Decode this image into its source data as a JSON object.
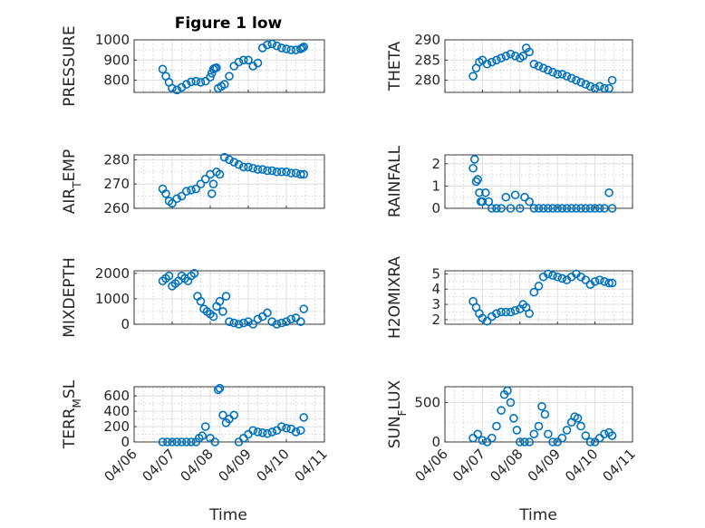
{
  "figure": {
    "title": "Figure 1 low",
    "xlabel": "Time"
  },
  "colors": {
    "marker": "#0072BD",
    "axis": "#262626"
  },
  "chart_data": [
    {
      "type": "scatter",
      "ylabel": "PRESSURE",
      "ylim": [
        740,
        1000
      ],
      "yticks": [
        800,
        900,
        1000
      ],
      "x": [
        "04/06 18:00",
        "04/06 20:00",
        "04/06 22:00",
        "04/07 00:00",
        "04/07 03:00",
        "04/07 06:00",
        "04/07 09:00",
        "04/07 12:00",
        "04/07 15:00",
        "04/07 18:00",
        "04/07 21:00",
        "04/08 00:00",
        "04/08 01:00",
        "04/08 02:00",
        "04/08 03:00",
        "04/08 04:00",
        "04/08 05:00",
        "04/08 07:00",
        "04/08 09:00",
        "04/08 12:00",
        "04/08 15:00",
        "04/08 18:00",
        "04/08 21:00",
        "04/09 00:00",
        "04/09 03:00",
        "04/09 06:00",
        "04/09 09:00",
        "04/09 12:00",
        "04/09 15:00",
        "04/09 18:00",
        "04/09 21:00",
        "04/10 00:00",
        "04/10 03:00",
        "04/10 06:00",
        "04/10 09:00",
        "04/10 10:00",
        "04/10 11:00"
      ],
      "y": [
        855,
        820,
        790,
        760,
        752,
        765,
        780,
        792,
        795,
        790,
        795,
        815,
        835,
        855,
        860,
        862,
        760,
        770,
        780,
        820,
        870,
        890,
        900,
        900,
        870,
        885,
        960,
        975,
        980,
        970,
        960,
        955,
        950,
        950,
        955,
        960,
        965
      ]
    },
    {
      "type": "scatter",
      "ylabel": "THETA",
      "ylim": [
        277,
        290
      ],
      "yticks": [
        280,
        285,
        290
      ],
      "x": [
        "04/06 18:00",
        "04/06 20:00",
        "04/06 22:00",
        "04/07 00:00",
        "04/07 03:00",
        "04/07 06:00",
        "04/07 09:00",
        "04/07 12:00",
        "04/07 15:00",
        "04/07 18:00",
        "04/07 21:00",
        "04/08 00:00",
        "04/08 02:00",
        "04/08 04:00",
        "04/08 06:00",
        "04/08 09:00",
        "04/08 12:00",
        "04/08 15:00",
        "04/08 18:00",
        "04/08 21:00",
        "04/09 00:00",
        "04/09 03:00",
        "04/09 06:00",
        "04/09 09:00",
        "04/09 12:00",
        "04/09 15:00",
        "04/09 18:00",
        "04/09 21:00",
        "04/10 00:00",
        "04/10 03:00",
        "04/10 06:00",
        "04/10 09:00",
        "04/10 11:00"
      ],
      "y": [
        281,
        283,
        284.5,
        285,
        284,
        284.5,
        285,
        285.5,
        286,
        286.5,
        286,
        285.5,
        286,
        288,
        287,
        284,
        283.5,
        283,
        282.5,
        282,
        281.5,
        281.5,
        281,
        280.5,
        280,
        279.5,
        279,
        278.5,
        278,
        278.5,
        278,
        278,
        280
      ]
    },
    {
      "type": "scatter",
      "ylabel": "AIR_TEMP",
      "ylim": [
        260,
        282
      ],
      "yticks": [
        260,
        270,
        280
      ],
      "x": [
        "04/06 18:00",
        "04/06 20:00",
        "04/06 22:00",
        "04/07 00:00",
        "04/07 03:00",
        "04/07 06:00",
        "04/07 09:00",
        "04/07 12:00",
        "04/07 15:00",
        "04/07 18:00",
        "04/07 21:00",
        "04/08 00:00",
        "04/08 01:00",
        "04/08 02:00",
        "04/08 04:00",
        "04/08 06:00",
        "04/08 09:00",
        "04/08 12:00",
        "04/08 15:00",
        "04/08 18:00",
        "04/08 21:00",
        "04/09 00:00",
        "04/09 03:00",
        "04/09 06:00",
        "04/09 09:00",
        "04/09 12:00",
        "04/09 15:00",
        "04/09 18:00",
        "04/09 21:00",
        "04/10 00:00",
        "04/10 03:00",
        "04/10 06:00",
        "04/10 09:00",
        "04/10 11:00"
      ],
      "y": [
        268,
        266,
        263,
        262,
        264,
        265,
        267,
        267.5,
        268,
        270,
        272,
        274,
        266,
        270,
        275,
        274,
        281,
        280,
        279,
        278,
        277,
        277,
        276.5,
        276,
        276,
        275.5,
        275.5,
        275,
        275,
        275,
        274.5,
        274.5,
        274,
        274
      ]
    },
    {
      "type": "scatter",
      "ylabel": "RAINFALL",
      "ylim": [
        0,
        2.4
      ],
      "yticks": [
        0,
        1,
        2
      ],
      "x": [
        "04/06 18:00",
        "04/06 19:00",
        "04/06 20:00",
        "04/06 21:00",
        "04/06 22:00",
        "04/06 23:00",
        "04/07 00:00",
        "04/07 02:00",
        "04/07 04:00",
        "04/07 06:00",
        "04/07 09:00",
        "04/07 12:00",
        "04/07 15:00",
        "04/07 18:00",
        "04/07 21:00",
        "04/08 00:00",
        "04/08 03:00",
        "04/08 06:00",
        "04/08 09:00",
        "04/08 12:00",
        "04/08 15:00",
        "04/08 18:00",
        "04/08 21:00",
        "04/09 00:00",
        "04/09 03:00",
        "04/09 06:00",
        "04/09 09:00",
        "04/09 12:00",
        "04/09 15:00",
        "04/09 18:00",
        "04/09 21:00",
        "04/10 00:00",
        "04/10 03:00",
        "04/10 06:00",
        "04/10 09:00",
        "04/10 11:00"
      ],
      "y": [
        1.8,
        2.2,
        1.2,
        1.3,
        0.7,
        0.3,
        0.3,
        0.7,
        0.3,
        0,
        0,
        0,
        0.5,
        0,
        0.6,
        0,
        0.5,
        0.3,
        0,
        0,
        0,
        0,
        0,
        0,
        0,
        0,
        0,
        0,
        0,
        0,
        0,
        0,
        0,
        0,
        0.7,
        0
      ]
    },
    {
      "type": "scatter",
      "ylabel": "MIXDEPTH",
      "ylim": [
        0,
        2100
      ],
      "yticks": [
        0,
        1000,
        2000
      ],
      "x": [
        "04/06 18:00",
        "04/06 20:00",
        "04/06 22:00",
        "04/07 00:00",
        "04/07 02:00",
        "04/07 04:00",
        "04/07 06:00",
        "04/07 08:00",
        "04/07 10:00",
        "04/07 12:00",
        "04/07 14:00",
        "04/07 16:00",
        "04/07 18:00",
        "04/07 20:00",
        "04/07 22:00",
        "04/08 00:00",
        "04/08 02:00",
        "04/08 04:00",
        "04/08 06:00",
        "04/08 08:00",
        "04/08 10:00",
        "04/08 12:00",
        "04/08 15:00",
        "04/08 18:00",
        "04/08 21:00",
        "04/09 00:00",
        "04/09 03:00",
        "04/09 06:00",
        "04/09 09:00",
        "04/09 12:00",
        "04/09 15:00",
        "04/09 18:00",
        "04/09 21:00",
        "04/10 00:00",
        "04/10 03:00",
        "04/10 06:00",
        "04/10 09:00",
        "04/10 11:00"
      ],
      "y": [
        1700,
        1800,
        1900,
        1500,
        1600,
        1700,
        1900,
        1800,
        1700,
        1900,
        2000,
        1100,
        900,
        600,
        500,
        400,
        300,
        700,
        900,
        500,
        1100,
        100,
        50,
        0,
        50,
        100,
        0,
        200,
        300,
        450,
        100,
        0,
        50,
        100,
        200,
        250,
        100,
        600
      ]
    },
    {
      "type": "scatter",
      "ylabel": "H2OMIXRA",
      "ylim": [
        1.7,
        5.2
      ],
      "yticks": [
        2,
        3,
        4,
        5
      ],
      "x": [
        "04/06 18:00",
        "04/06 20:00",
        "04/06 22:00",
        "04/07 00:00",
        "04/07 03:00",
        "04/07 06:00",
        "04/07 09:00",
        "04/07 12:00",
        "04/07 15:00",
        "04/07 18:00",
        "04/07 21:00",
        "04/08 00:00",
        "04/08 02:00",
        "04/08 04:00",
        "04/08 06:00",
        "04/08 09:00",
        "04/08 12:00",
        "04/08 15:00",
        "04/08 18:00",
        "04/08 21:00",
        "04/09 00:00",
        "04/09 03:00",
        "04/09 06:00",
        "04/09 09:00",
        "04/09 12:00",
        "04/09 15:00",
        "04/09 18:00",
        "04/09 21:00",
        "04/10 00:00",
        "04/10 03:00",
        "04/10 06:00",
        "04/10 09:00",
        "04/10 11:00"
      ],
      "y": [
        3.2,
        2.8,
        2.4,
        2.1,
        1.9,
        2.2,
        2.4,
        2.5,
        2.5,
        2.5,
        2.6,
        2.7,
        3.0,
        2.8,
        2.4,
        3.8,
        4.2,
        4.8,
        5.0,
        4.9,
        4.8,
        4.7,
        4.6,
        4.8,
        5.0,
        4.8,
        4.6,
        4.3,
        4.5,
        4.6,
        4.5,
        4.4,
        4.4
      ]
    },
    {
      "type": "scatter",
      "ylabel": "TERR_MSL",
      "ylim": [
        0,
        720
      ],
      "yticks": [
        0,
        200,
        400,
        600
      ],
      "x": [
        "04/06 18:00",
        "04/06 21:00",
        "04/07 00:00",
        "04/07 03:00",
        "04/07 06:00",
        "04/07 09:00",
        "04/07 12:00",
        "04/07 15:00",
        "04/07 17:00",
        "04/07 19:00",
        "04/07 21:00",
        "04/08 00:00",
        "04/08 03:00",
        "04/08 05:00",
        "04/08 06:00",
        "04/08 08:00",
        "04/08 10:00",
        "04/08 12:00",
        "04/08 15:00",
        "04/08 18:00",
        "04/08 21:00",
        "04/09 00:00",
        "04/09 03:00",
        "04/09 06:00",
        "04/09 09:00",
        "04/09 12:00",
        "04/09 15:00",
        "04/09 18:00",
        "04/09 21:00",
        "04/10 00:00",
        "04/10 03:00",
        "04/10 06:00",
        "04/10 09:00",
        "04/10 11:00"
      ],
      "y": [
        0,
        0,
        0,
        0,
        0,
        0,
        0,
        0,
        50,
        80,
        200,
        50,
        0,
        680,
        700,
        350,
        250,
        300,
        350,
        0,
        50,
        100,
        150,
        130,
        120,
        110,
        130,
        150,
        200,
        180,
        170,
        130,
        150,
        320
      ]
    },
    {
      "type": "scatter",
      "ylabel": "SUN_FLUX",
      "ylim": [
        0,
        700
      ],
      "yticks": [
        0,
        500
      ],
      "x": [
        "04/06 18:00",
        "04/06 21:00",
        "04/07 00:00",
        "04/07 03:00",
        "04/07 06:00",
        "04/07 09:00",
        "04/07 12:00",
        "04/07 14:00",
        "04/07 16:00",
        "04/07 18:00",
        "04/07 20:00",
        "04/07 22:00",
        "04/08 00:00",
        "04/08 03:00",
        "04/08 06:00",
        "04/08 09:00",
        "04/08 12:00",
        "04/08 14:00",
        "04/08 16:00",
        "04/08 18:00",
        "04/08 21:00",
        "04/09 00:00",
        "04/09 03:00",
        "04/09 06:00",
        "04/09 09:00",
        "04/09 11:00",
        "04/09 13:00",
        "04/09 15:00",
        "04/09 18:00",
        "04/09 21:00",
        "04/10 00:00",
        "04/10 03:00",
        "04/10 06:00",
        "04/10 09:00",
        "04/10 11:00"
      ],
      "y": [
        50,
        100,
        20,
        0,
        50,
        200,
        400,
        600,
        650,
        500,
        300,
        150,
        0,
        0,
        0,
        100,
        200,
        450,
        350,
        100,
        0,
        0,
        50,
        150,
        250,
        320,
        300,
        200,
        80,
        0,
        0,
        50,
        100,
        120,
        80
      ]
    }
  ],
  "xaxis": {
    "start": "04/06 00:00",
    "end": "04/11 00:00",
    "ticks": [
      "04/06",
      "04/07",
      "04/08",
      "04/09",
      "04/10",
      "04/11"
    ]
  }
}
